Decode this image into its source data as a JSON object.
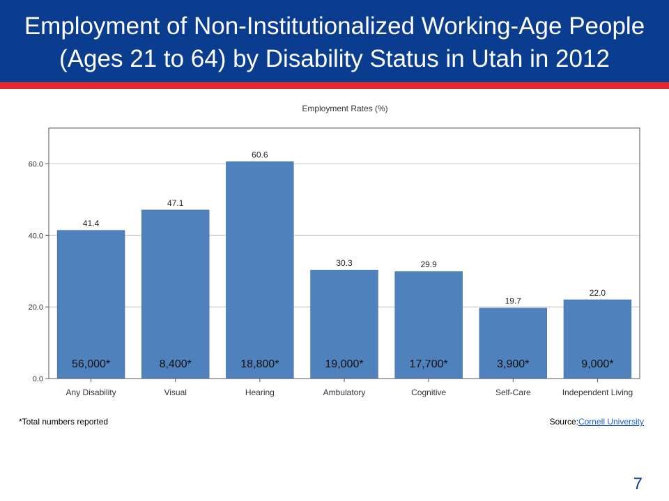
{
  "slide": {
    "title_line1": "Employment of Non-Institutionalized Working-Age People",
    "title_line2": "(Ages 21 to 64) by Disability Status in Utah in 2012",
    "footnote": "*Total numbers reported",
    "source_label": "Source:",
    "source_link": "Cornell University",
    "page_number": "7",
    "colors": {
      "header": "#0a3d8f",
      "stripe": "#e0282e",
      "bar": "#4f81bd"
    }
  },
  "chart_data": {
    "type": "bar",
    "title": "Employment Rates (%)",
    "xlabel": "",
    "ylabel": "",
    "categories": [
      "Any Disability",
      "Visual",
      "Hearing",
      "Ambulatory",
      "Cognitive",
      "Self-Care",
      "Independent Living"
    ],
    "values": [
      41.4,
      47.1,
      60.6,
      30.3,
      29.9,
      19.7,
      22.0
    ],
    "value_labels": [
      "41.4",
      "47.1",
      "60.6",
      "30.3",
      "29.9",
      "19.7",
      "22.0"
    ],
    "totals": [
      "56,000*",
      "8,400*",
      "18,800*",
      "19,000*",
      "17,700*",
      "3,900*",
      "9,000*"
    ],
    "ylim": [
      0,
      70
    ],
    "yticks": [
      "0.0",
      "20.0",
      "40.0",
      "60.0"
    ],
    "ytick_values": [
      0,
      20,
      40,
      60
    ],
    "grid": true,
    "legend": "none"
  }
}
